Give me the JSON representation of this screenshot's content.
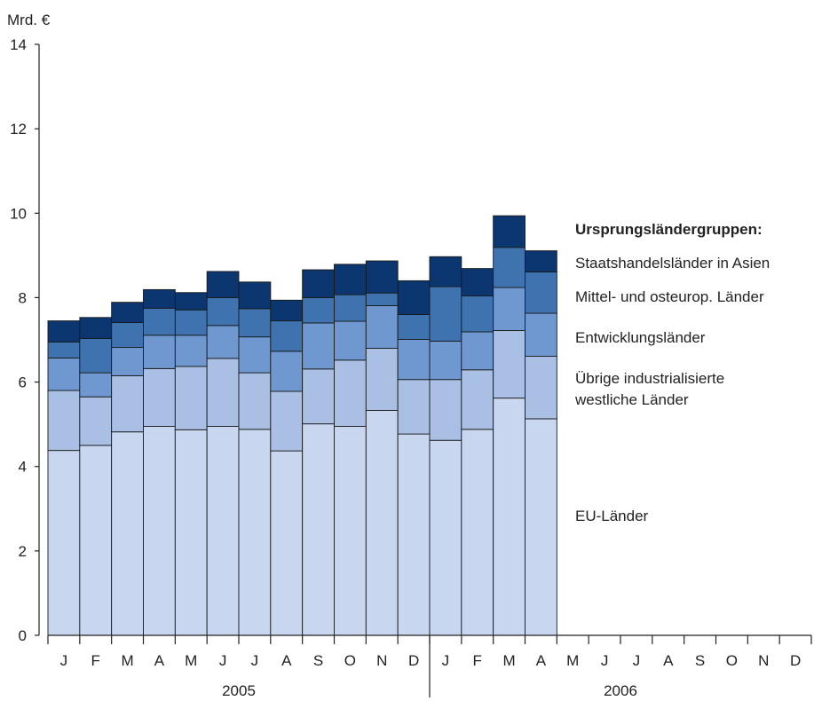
{
  "chart_data": {
    "type": "bar",
    "stacked": true,
    "ylabel": "Mrd. €",
    "ylim": [
      0,
      14
    ],
    "yticks": [
      0,
      2,
      4,
      6,
      8,
      10,
      12,
      14
    ],
    "categories": [
      "J",
      "F",
      "M",
      "A",
      "M",
      "J",
      "J",
      "A",
      "S",
      "O",
      "N",
      "D",
      "J",
      "F",
      "M",
      "A",
      "M",
      "J",
      "J",
      "A",
      "S",
      "O",
      "N",
      "D"
    ],
    "year_groups": [
      {
        "label": "2005",
        "count": 12
      },
      {
        "label": "2006",
        "count": 12
      }
    ],
    "legend_title": "Ursprungsländergruppen:",
    "series": [
      {
        "name": "EU-Länder",
        "color": "#c9d6ef",
        "values": [
          4.38,
          4.5,
          4.82,
          4.95,
          4.87,
          4.95,
          4.88,
          4.37,
          5.01,
          4.95,
          5.33,
          4.77,
          4.62,
          4.88,
          5.62,
          5.13,
          null,
          null,
          null,
          null,
          null,
          null,
          null,
          null
        ]
      },
      {
        "name": "Übrige industrialisierte westliche Länder",
        "color": "#a9c0e4",
        "values": [
          1.42,
          1.15,
          1.33,
          1.37,
          1.5,
          1.61,
          1.34,
          1.41,
          1.3,
          1.57,
          1.47,
          1.29,
          1.44,
          1.41,
          1.6,
          1.48,
          null,
          null,
          null,
          null,
          null,
          null,
          null,
          null
        ]
      },
      {
        "name": "Entwicklungsländer",
        "color": "#6e98cf",
        "values": [
          0.77,
          0.57,
          0.67,
          0.79,
          0.74,
          0.78,
          0.85,
          0.95,
          1.09,
          0.92,
          1.01,
          0.95,
          0.91,
          0.9,
          1.02,
          1.02,
          null,
          null,
          null,
          null,
          null,
          null,
          null,
          null
        ]
      },
      {
        "name": "Mittel- und osteurop. Länder",
        "color": "#3f73b0",
        "values": [
          0.38,
          0.81,
          0.59,
          0.64,
          0.6,
          0.66,
          0.67,
          0.72,
          0.6,
          0.63,
          0.3,
          0.59,
          1.29,
          0.85,
          0.95,
          0.98,
          null,
          null,
          null,
          null,
          null,
          null,
          null,
          null
        ]
      },
      {
        "name": "Staatshandelsländer in Asien",
        "color": "#0b3670",
        "values": [
          0.5,
          0.5,
          0.48,
          0.44,
          0.41,
          0.62,
          0.63,
          0.49,
          0.66,
          0.72,
          0.76,
          0.8,
          0.71,
          0.65,
          0.75,
          0.5,
          null,
          null,
          null,
          null,
          null,
          null,
          null,
          null
        ]
      }
    ],
    "legend_placement": "right",
    "grid": false
  }
}
